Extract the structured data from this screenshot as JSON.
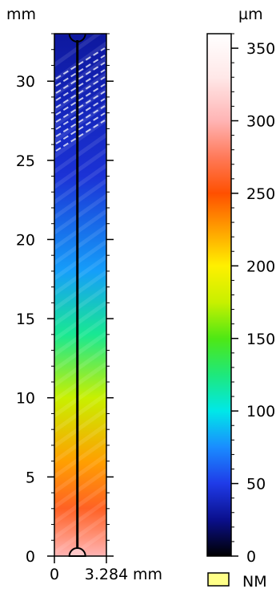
{
  "chart_data": {
    "type": "heatmap",
    "map": {
      "y_unit": "mm",
      "x_unit": "mm",
      "x_ticks": [
        "0",
        "3.284"
      ],
      "y_ticks": [
        0,
        5,
        10,
        15,
        20,
        25,
        30
      ],
      "x_range": [
        0,
        3.284
      ],
      "y_range": [
        0,
        33
      ],
      "height_gradient_um": [
        {
          "y": 0,
          "z": 300
        },
        {
          "y": 3,
          "z": 260
        },
        {
          "y": 6,
          "z": 225
        },
        {
          "y": 10,
          "z": 175
        },
        {
          "y": 14,
          "z": 120
        },
        {
          "y": 18,
          "z": 80
        },
        {
          "y": 24,
          "z": 45
        },
        {
          "y": 33,
          "z": 30
        }
      ],
      "profile_line_x_mm": 1.45
    },
    "colorbar": {
      "unit": "µm",
      "ticks": [
        0,
        50,
        100,
        150,
        200,
        250,
        300,
        350
      ],
      "range": [
        0,
        360
      ],
      "colorscale": [
        {
          "z": 0,
          "color": "#000000"
        },
        {
          "z": 25,
          "color": "#0a0f8c"
        },
        {
          "z": 50,
          "color": "#1f3be8"
        },
        {
          "z": 75,
          "color": "#1a8cff"
        },
        {
          "z": 100,
          "color": "#00e8e8"
        },
        {
          "z": 125,
          "color": "#1ee87c"
        },
        {
          "z": 150,
          "color": "#4ee814"
        },
        {
          "z": 175,
          "color": "#c8f000"
        },
        {
          "z": 200,
          "color": "#fff000"
        },
        {
          "z": 225,
          "color": "#ffa000"
        },
        {
          "z": 250,
          "color": "#ff5000"
        },
        {
          "z": 275,
          "color": "#ff7a5a"
        },
        {
          "z": 300,
          "color": "#ffb4b4"
        },
        {
          "z": 330,
          "color": "#ffe8e8"
        },
        {
          "z": 360,
          "color": "#ffffff"
        }
      ]
    },
    "legend": {
      "label": "NM",
      "color": "#ffff88"
    }
  }
}
